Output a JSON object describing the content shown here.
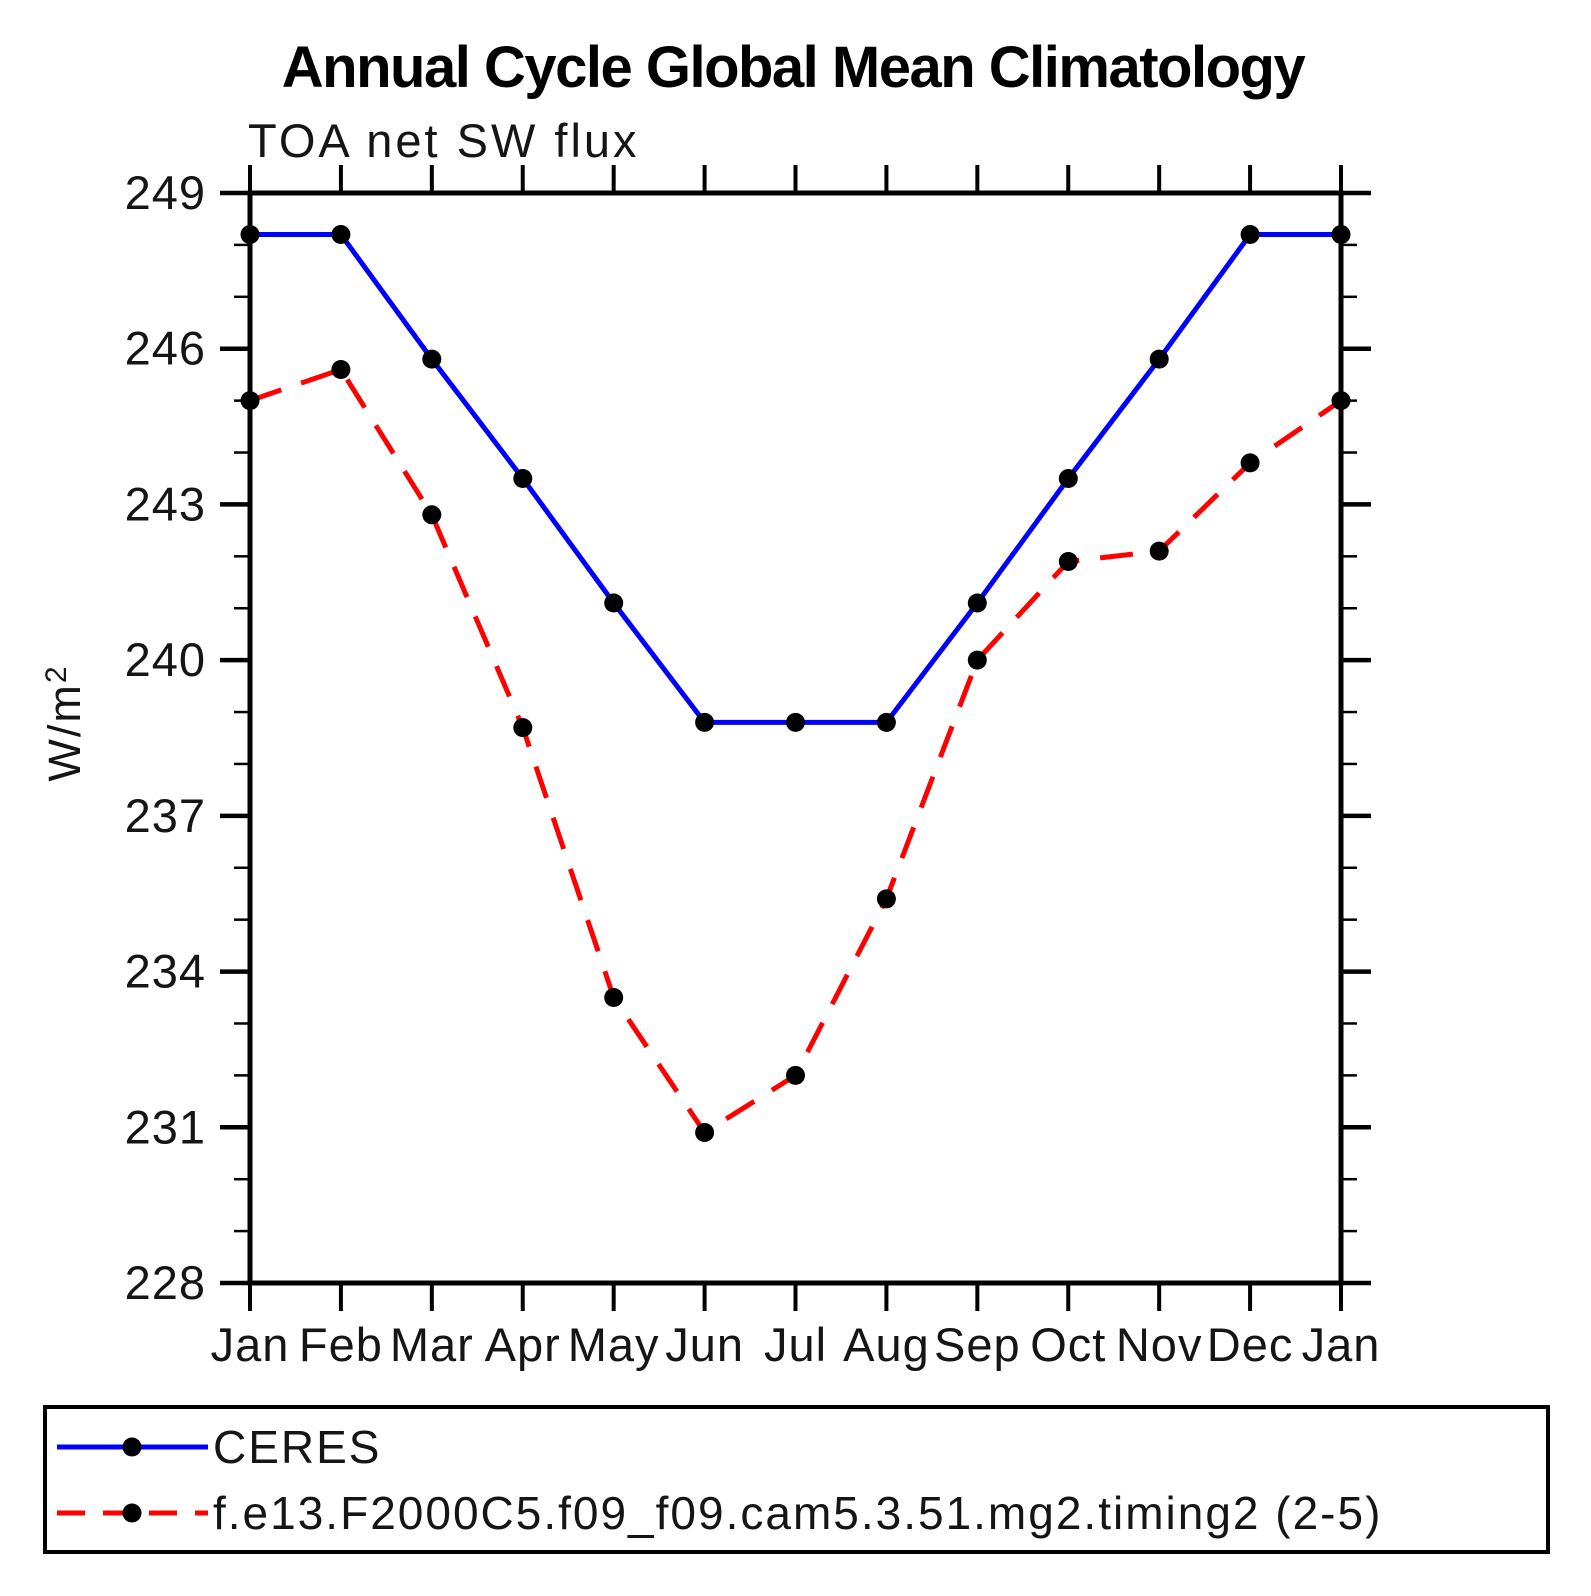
{
  "title": "Annual Cycle Global Mean Climatology",
  "subtitle": "TOA net SW flux",
  "y_axis": {
    "label_base": "W/m",
    "label_exponent": "2"
  },
  "colors": {
    "ceres_line": "#0000ff",
    "model_line": "#ff0000",
    "marker": "#000000",
    "axis": "#000000"
  },
  "chart_data": {
    "type": "line",
    "x_categories": [
      "Jan",
      "Feb",
      "Mar",
      "Apr",
      "May",
      "Jun",
      "Jul",
      "Aug",
      "Sep",
      "Oct",
      "Nov",
      "Dec",
      "Jan"
    ],
    "ylim": [
      228,
      249
    ],
    "ytick_major_step": 3,
    "ytick_minor_step": 1,
    "ytick_labels": [
      "228",
      "231",
      "234",
      "237",
      "240",
      "243",
      "246",
      "249"
    ],
    "grid": false,
    "legend_position": "bottom",
    "series": [
      {
        "name": "CERES",
        "color": "#0000ff",
        "line_style": "solid",
        "marker": "filled-circle",
        "marker_color": "#000000",
        "values": [
          248.2,
          248.2,
          245.8,
          243.5,
          241.1,
          238.8,
          238.8,
          238.8,
          241.1,
          243.5,
          245.8,
          248.2,
          248.2
        ]
      },
      {
        "name": "f.e13.F2000C5.f09_f09.cam5.3.51.mg2.timing2 (2-5)",
        "color": "#ff0000",
        "line_style": "dashed",
        "marker": "filled-circle",
        "marker_color": "#000000",
        "values": [
          245.0,
          245.6,
          242.8,
          238.7,
          233.5,
          230.9,
          232.0,
          235.4,
          240.0,
          241.9,
          242.1,
          243.8,
          245.0
        ]
      }
    ]
  }
}
